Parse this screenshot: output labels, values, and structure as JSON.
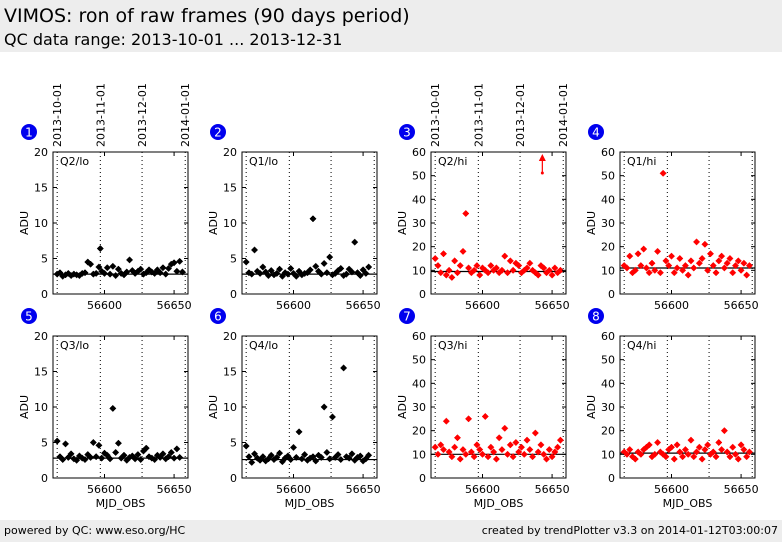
{
  "header": {
    "title": "VIMOS: ron of raw frames (90 days period)",
    "subtitle": "QC data range: 2013-10-01 ... 2013-12-31"
  },
  "footer": {
    "left": "powered by QC: www.eso.org/HC",
    "right": "created by trendPlotter v3.3 on 2014-01-12T03:00:07"
  },
  "colors": {
    "black_series": "#000000",
    "red_series": "#ff0000",
    "badge": "#0000ee",
    "header_bg": "#ededed"
  },
  "chart_data": [
    {
      "id": "1",
      "type": "scatter",
      "label": "Q2/lo",
      "color": "#000000",
      "ylabel": "ADU",
      "xlabel": "",
      "ylim": [
        0,
        20
      ],
      "yticks": [
        0,
        5,
        10,
        15,
        20
      ],
      "xlim": [
        56563,
        56660
      ],
      "xticks": [
        56600,
        56650
      ],
      "date_ticks": [
        "2013-10-01",
        "2013-11-01",
        "2013-12-01",
        "2014-01-01"
      ],
      "date_mjd": [
        56566,
        56597,
        56627,
        56658
      ],
      "ref": 2.8,
      "x": [
        56566,
        56568,
        56570,
        56572,
        56574,
        56576,
        56578,
        56580,
        56582,
        56584,
        56586,
        56588,
        56590,
        56592,
        56594,
        56596,
        56597,
        56598,
        56600,
        56602,
        56604,
        56606,
        56608,
        56610,
        56612,
        56614,
        56616,
        56618,
        56620,
        56622,
        56624,
        56626,
        56628,
        56630,
        56632,
        56634,
        56636,
        56638,
        56640,
        56642,
        56644,
        56646,
        56648,
        56650,
        56652,
        56654,
        56656
      ],
      "y": [
        2.8,
        3.0,
        2.5,
        2.7,
        2.9,
        2.6,
        2.8,
        2.7,
        2.6,
        2.9,
        3.0,
        4.5,
        4.2,
        2.8,
        2.9,
        3.8,
        6.4,
        3.2,
        2.9,
        3.7,
        2.8,
        3.9,
        2.6,
        3.5,
        2.9,
        2.7,
        3.1,
        4.8,
        3.3,
        2.9,
        3.2,
        3.5,
        2.8,
        3.0,
        3.4,
        3.1,
        2.9,
        3.4,
        3.0,
        3.7,
        2.8,
        3.6,
        4.2,
        4.4,
        3.2,
        4.6,
        3.1
      ]
    },
    {
      "id": "2",
      "type": "scatter",
      "label": "Q1/lo",
      "color": "#000000",
      "ylabel": "ADU",
      "xlabel": "",
      "ylim": [
        0,
        20
      ],
      "yticks": [
        0,
        5,
        10,
        15,
        20
      ],
      "xlim": [
        56563,
        56660
      ],
      "xticks": [
        56600,
        56650
      ],
      "date_ticks": [],
      "date_mjd": [
        56566,
        56597,
        56627,
        56658
      ],
      "ref": 2.8,
      "x": [
        56566,
        56568,
        56570,
        56572,
        56574,
        56576,
        56578,
        56580,
        56582,
        56584,
        56586,
        56588,
        56590,
        56592,
        56594,
        56596,
        56598,
        56600,
        56602,
        56604,
        56606,
        56608,
        56610,
        56612,
        56614,
        56616,
        56618,
        56620,
        56622,
        56624,
        56626,
        56628,
        56630,
        56632,
        56634,
        56636,
        56638,
        56640,
        56642,
        56644,
        56646,
        56648,
        56650,
        56652,
        56654
      ],
      "y": [
        4.5,
        3.0,
        2.8,
        6.2,
        3.2,
        2.9,
        3.8,
        3.1,
        2.6,
        3.3,
        2.7,
        2.9,
        3.5,
        2.5,
        3.0,
        2.8,
        3.6,
        2.9,
        2.5,
        3.2,
        2.7,
        2.9,
        3.0,
        3.4,
        10.6,
        3.9,
        3.2,
        2.8,
        4.3,
        3.0,
        5.2,
        2.7,
        2.9,
        3.3,
        3.6,
        2.6,
        2.8,
        3.5,
        3.1,
        7.3,
        3.0,
        2.6,
        3.4,
        2.9,
        3.8
      ]
    },
    {
      "id": "3",
      "type": "scatter",
      "label": "Q2/hi",
      "color": "#ff0000",
      "ylabel": "ADU",
      "xlabel": "",
      "ylim": [
        0,
        60
      ],
      "yticks": [
        0,
        10,
        20,
        30,
        40,
        50,
        60
      ],
      "xlim": [
        56563,
        56660
      ],
      "xticks": [
        56600,
        56650
      ],
      "date_ticks": [
        "2013-10-01",
        "2013-11-01",
        "2013-12-01",
        "2014-01-01"
      ],
      "date_mjd": [
        56566,
        56597,
        56627,
        56658
      ],
      "ref": 9.5,
      "outlier_arrow_x": 56643,
      "x": [
        56566,
        56568,
        56570,
        56572,
        56574,
        56576,
        56578,
        56580,
        56582,
        56584,
        56586,
        56588,
        56590,
        56592,
        56594,
        56596,
        56598,
        56600,
        56602,
        56604,
        56606,
        56608,
        56610,
        56612,
        56614,
        56616,
        56618,
        56620,
        56622,
        56624,
        56626,
        56628,
        56630,
        56632,
        56634,
        56636,
        56638,
        56640,
        56642,
        56644,
        56646,
        56648,
        56650,
        56652,
        56654,
        56656
      ],
      "y": [
        15,
        12,
        9,
        17,
        8,
        10,
        7,
        14,
        9,
        12,
        18,
        34,
        11,
        9,
        10,
        12,
        8,
        11,
        10,
        9,
        12,
        10,
        11,
        9,
        10,
        16,
        9,
        14,
        10,
        13,
        12,
        9,
        10,
        11,
        13,
        10,
        9,
        8,
        12,
        11,
        9,
        10,
        8,
        11,
        9,
        10
      ]
    },
    {
      "id": "4",
      "type": "scatter",
      "label": "Q1/hi",
      "color": "#ff0000",
      "ylabel": "ADU",
      "xlabel": "",
      "ylim": [
        0,
        60
      ],
      "yticks": [
        0,
        10,
        20,
        30,
        40,
        50,
        60
      ],
      "xlim": [
        56563,
        56660
      ],
      "xticks": [
        56600,
        56650
      ],
      "date_ticks": [],
      "date_mjd": [
        56566,
        56597,
        56627,
        56658
      ],
      "ref": 11,
      "x": [
        56566,
        56568,
        56570,
        56572,
        56574,
        56576,
        56578,
        56580,
        56582,
        56584,
        56586,
        56588,
        56590,
        56592,
        56594,
        56596,
        56598,
        56600,
        56602,
        56604,
        56606,
        56608,
        56610,
        56612,
        56614,
        56616,
        56618,
        56620,
        56622,
        56624,
        56626,
        56628,
        56630,
        56632,
        56634,
        56636,
        56638,
        56640,
        56642,
        56644,
        56646,
        56648,
        56650,
        56652,
        56654,
        56656
      ],
      "y": [
        12,
        11,
        16,
        9,
        10,
        17,
        12,
        19,
        11,
        9,
        13,
        10,
        18,
        9,
        51,
        14,
        12,
        16,
        9,
        11,
        15,
        10,
        12,
        8,
        14,
        11,
        22,
        13,
        15,
        21,
        10,
        17,
        12,
        9,
        14,
        16,
        11,
        13,
        15,
        9,
        12,
        14,
        10,
        13,
        8,
        12
      ]
    },
    {
      "id": "5",
      "type": "scatter",
      "label": "Q3/lo",
      "color": "#000000",
      "ylabel": "ADU",
      "xlabel": "MJD_OBS",
      "ylim": [
        0,
        20
      ],
      "yticks": [
        0,
        5,
        10,
        15,
        20
      ],
      "xlim": [
        56563,
        56660
      ],
      "xticks": [
        56600,
        56650
      ],
      "date_ticks": [],
      "date_mjd": [
        56566,
        56597,
        56627,
        56658
      ],
      "ref": 2.8,
      "x": [
        56566,
        56568,
        56570,
        56572,
        56574,
        56576,
        56578,
        56580,
        56582,
        56584,
        56586,
        56588,
        56590,
        56592,
        56594,
        56596,
        56598,
        56600,
        56602,
        56604,
        56606,
        56608,
        56610,
        56612,
        56614,
        56616,
        56618,
        56620,
        56622,
        56624,
        56626,
        56628,
        56630,
        56632,
        56634,
        56636,
        56638,
        56640,
        56642,
        56644,
        56646,
        56648,
        56650,
        56652,
        56654
      ],
      "y": [
        5.2,
        3.0,
        2.6,
        4.8,
        2.9,
        3.4,
        2.7,
        2.5,
        3.1,
        2.8,
        2.6,
        3.3,
        2.9,
        5.0,
        3.0,
        4.6,
        2.8,
        3.5,
        3.2,
        2.7,
        9.8,
        3.6,
        4.9,
        2.8,
        3.2,
        2.5,
        2.9,
        3.1,
        2.7,
        3.3,
        2.6,
        3.8,
        4.2,
        3.0,
        2.8,
        2.6,
        3.2,
        2.9,
        3.4,
        2.7,
        3.0,
        3.6,
        2.8,
        4.1,
        2.9
      ]
    },
    {
      "id": "6",
      "type": "scatter",
      "label": "Q4/lo",
      "color": "#000000",
      "ylabel": "ADU",
      "xlabel": "MJD_OBS",
      "ylim": [
        0,
        20
      ],
      "yticks": [
        0,
        5,
        10,
        15,
        20
      ],
      "xlim": [
        56563,
        56660
      ],
      "xticks": [
        56600,
        56650
      ],
      "date_ticks": [],
      "date_mjd": [
        56566,
        56597,
        56627,
        56658
      ],
      "ref": 2.6,
      "x": [
        56566,
        56568,
        56570,
        56572,
        56574,
        56576,
        56578,
        56580,
        56582,
        56584,
        56586,
        56588,
        56590,
        56592,
        56594,
        56596,
        56598,
        56600,
        56602,
        56604,
        56606,
        56608,
        56610,
        56612,
        56614,
        56616,
        56618,
        56620,
        56622,
        56624,
        56626,
        56628,
        56630,
        56632,
        56634,
        56636,
        56638,
        56640,
        56642,
        56644,
        56646,
        56648,
        56650,
        56652,
        56654
      ],
      "y": [
        4.5,
        3.0,
        2.2,
        3.4,
        2.8,
        2.5,
        3.0,
        2.4,
        2.7,
        3.2,
        2.6,
        2.9,
        3.5,
        2.3,
        2.8,
        3.1,
        2.6,
        4.3,
        2.9,
        6.5,
        2.7,
        3.3,
        2.5,
        2.8,
        3.0,
        2.4,
        3.2,
        2.9,
        10.0,
        3.6,
        2.7,
        8.6,
        2.9,
        3.3,
        2.6,
        15.5,
        3.0,
        2.8,
        3.4,
        2.5,
        2.9,
        3.1,
        2.4,
        2.7,
        3.2
      ]
    },
    {
      "id": "7",
      "type": "scatter",
      "label": "Q3/hi",
      "color": "#ff0000",
      "ylabel": "ADU",
      "xlabel": "MJD_OBS",
      "ylim": [
        0,
        60
      ],
      "yticks": [
        0,
        10,
        20,
        30,
        40,
        50,
        60
      ],
      "xlim": [
        56563,
        56660
      ],
      "xticks": [
        56600,
        56650
      ],
      "date_ticks": [],
      "date_mjd": [
        56566,
        56597,
        56627,
        56658
      ],
      "ref": 10,
      "x": [
        56566,
        56568,
        56570,
        56572,
        56574,
        56576,
        56578,
        56580,
        56582,
        56584,
        56586,
        56588,
        56590,
        56592,
        56594,
        56596,
        56598,
        56600,
        56602,
        56604,
        56606,
        56608,
        56610,
        56612,
        56614,
        56616,
        56618,
        56620,
        56622,
        56624,
        56626,
        56628,
        56630,
        56632,
        56634,
        56636,
        56638,
        56640,
        56642,
        56644,
        56646,
        56648,
        56650,
        56652,
        56654,
        56656
      ],
      "y": [
        13,
        10,
        14,
        12,
        24,
        11,
        9,
        13,
        17,
        8,
        12,
        10,
        25,
        11,
        9,
        14,
        12,
        10,
        26,
        9,
        13,
        11,
        8,
        17,
        12,
        21,
        10,
        14,
        9,
        15,
        11,
        13,
        10,
        16,
        12,
        9,
        19,
        11,
        14,
        10,
        8,
        12,
        9,
        11,
        13,
        16
      ]
    },
    {
      "id": "8",
      "type": "scatter",
      "label": "Q4/hi",
      "color": "#ff0000",
      "ylabel": "ADU",
      "xlabel": "MJD_OBS",
      "ylim": [
        0,
        60
      ],
      "yticks": [
        0,
        10,
        20,
        30,
        40,
        50,
        60
      ],
      "xlim": [
        56563,
        56660
      ],
      "xticks": [
        56600,
        56650
      ],
      "date_ticks": [],
      "date_mjd": [
        56566,
        56597,
        56627,
        56658
      ],
      "ref": 10.5,
      "x": [
        56566,
        56568,
        56570,
        56572,
        56574,
        56576,
        56578,
        56580,
        56582,
        56584,
        56586,
        56588,
        56590,
        56592,
        56594,
        56596,
        56598,
        56600,
        56602,
        56604,
        56606,
        56608,
        56610,
        56612,
        56614,
        56616,
        56618,
        56620,
        56622,
        56624,
        56626,
        56628,
        56630,
        56632,
        56634,
        56636,
        56638,
        56640,
        56642,
        56644,
        56646,
        56648,
        56650,
        56652,
        56654,
        56656
      ],
      "y": [
        11,
        10,
        12,
        9,
        8,
        11,
        10,
        12,
        13,
        14,
        9,
        10,
        15,
        11,
        10,
        9,
        12,
        13,
        8,
        14,
        11,
        9,
        12,
        10,
        16,
        9,
        11,
        13,
        8,
        12,
        14,
        10,
        11,
        9,
        15,
        12,
        20,
        11,
        9,
        13,
        10,
        8,
        14,
        12,
        9,
        11
      ]
    }
  ]
}
